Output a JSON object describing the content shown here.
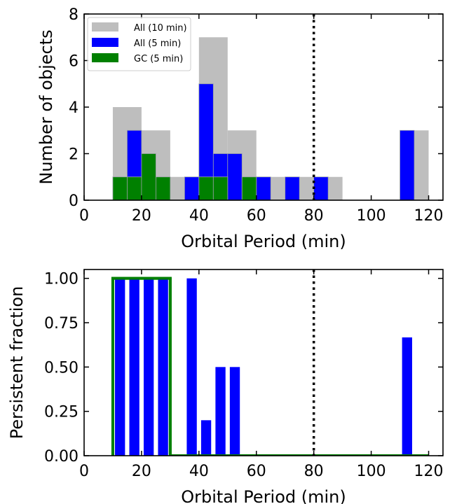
{
  "chart_data": [
    {
      "type": "bar",
      "panel": "top",
      "xlabel": "Orbital Period (min)",
      "ylabel": "Number of objects",
      "xlim": [
        0,
        125
      ],
      "ylim": [
        0,
        8
      ],
      "xticks": [
        "0",
        "20",
        "40",
        "60",
        "80",
        "100",
        "120"
      ],
      "yticks": [
        "0",
        "2",
        "4",
        "6",
        "8"
      ],
      "reference_line_x": 80,
      "legend": {
        "placement": "top-left",
        "entries": [
          "All (10 min)",
          "All (5 min)",
          "GC (5 min)"
        ]
      },
      "series": [
        {
          "name": "All (10 min)",
          "color": "#bebebe",
          "bin_width": 10,
          "bins": [
            [
              10,
              4
            ],
            [
              20,
              3
            ],
            [
              30,
              1
            ],
            [
              40,
              7
            ],
            [
              50,
              3
            ],
            [
              60,
              1
            ],
            [
              70,
              1
            ],
            [
              80,
              1
            ],
            [
              110,
              3
            ]
          ]
        },
        {
          "name": "All (5 min)",
          "color": "#0000ff",
          "bin_width": 5,
          "bins": [
            [
              15,
              3
            ],
            [
              35,
              1
            ],
            [
              40,
              5
            ],
            [
              45,
              2
            ],
            [
              50,
              2
            ],
            [
              60,
              1
            ],
            [
              70,
              1
            ],
            [
              80,
              1
            ],
            [
              110,
              3
            ]
          ]
        },
        {
          "name": "GC (5 min)",
          "color": "#008000",
          "bin_width": 5,
          "bins": [
            [
              10,
              1
            ],
            [
              15,
              1
            ],
            [
              20,
              2
            ],
            [
              25,
              1
            ],
            [
              40,
              1
            ],
            [
              45,
              1
            ],
            [
              55,
              1
            ]
          ]
        }
      ]
    },
    {
      "type": "bar",
      "panel": "bottom",
      "xlabel": "Orbital Period (min)",
      "ylabel": "Persistent fraction",
      "xlim": [
        0,
        125
      ],
      "ylim": [
        0,
        1.05
      ],
      "xticks": [
        "0",
        "20",
        "40",
        "60",
        "80",
        "100",
        "120"
      ],
      "yticks": [
        "0.00",
        "0.25",
        "0.50",
        "0.75",
        "1.00"
      ],
      "reference_line_x": 80,
      "gc_fraction": {
        "color": "#008000",
        "edges": [
          10,
          30,
          120
        ],
        "values": [
          1.0,
          0.0
        ]
      },
      "series": [
        {
          "color": "#0000ff",
          "bin_width": 5,
          "bar_width": 3.5,
          "centers": [
            12.5,
            17.5,
            22.5,
            27.5,
            37.5,
            42.5,
            47.5,
            52.5,
            112.5
          ],
          "values": [
            1.0,
            1.0,
            1.0,
            1.0,
            1.0,
            0.2,
            0.5,
            0.5,
            0.667
          ]
        }
      ]
    }
  ]
}
